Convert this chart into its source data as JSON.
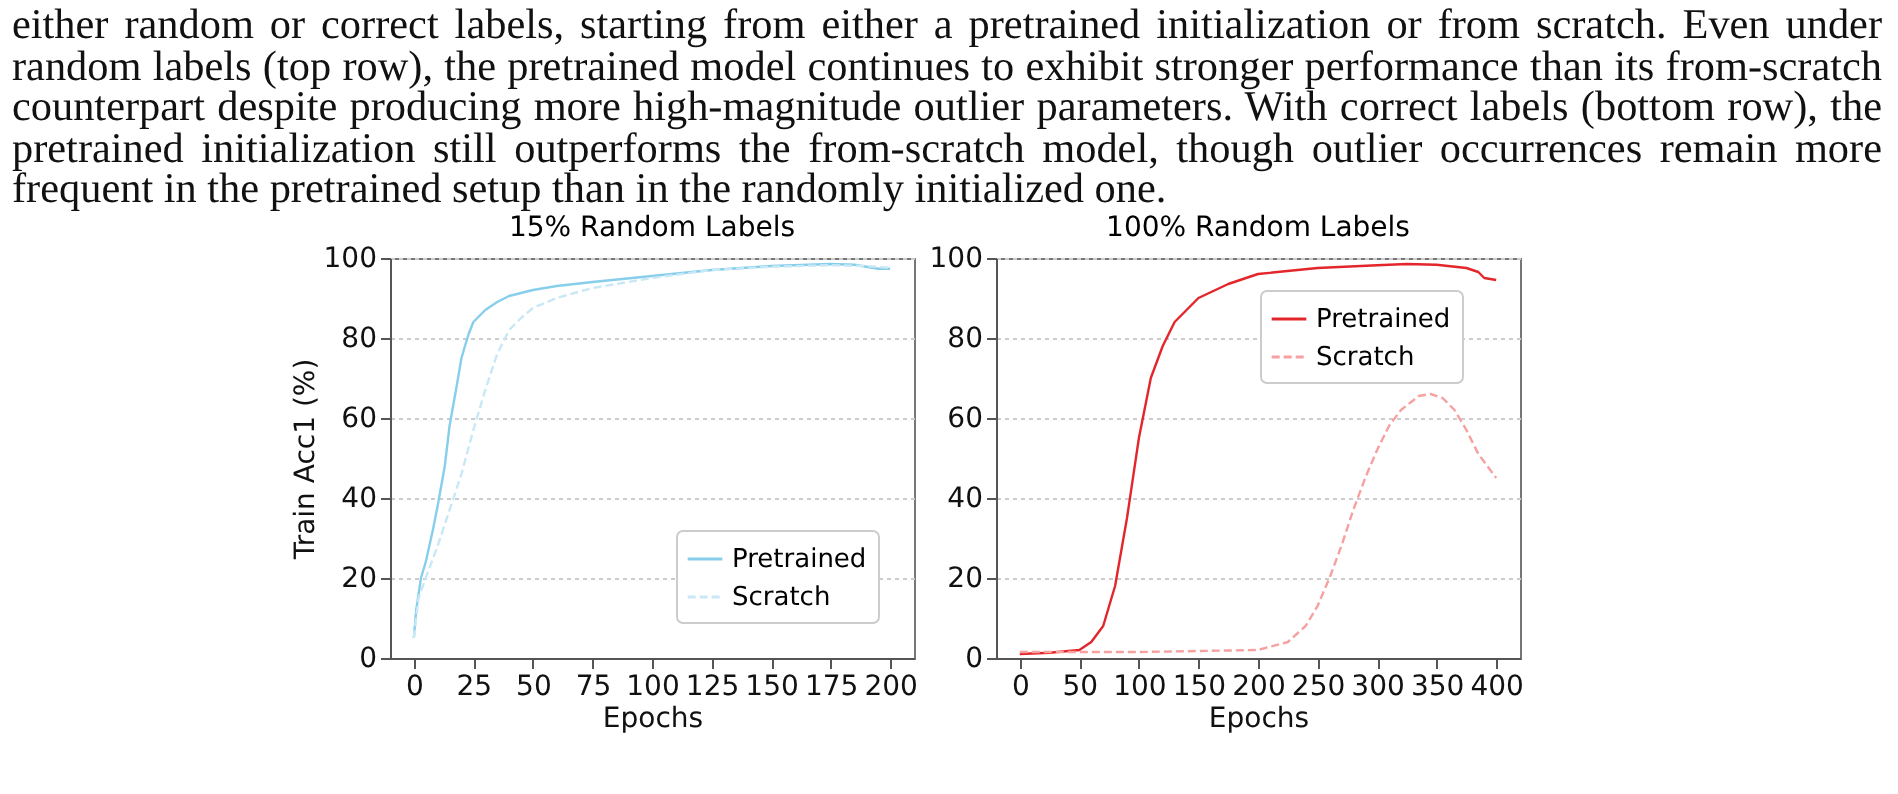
{
  "chart_data": [
    {
      "type": "line",
      "title": "15% Random Labels",
      "xlabel": "Epochs",
      "ylabel": "Train Acc1 (%)",
      "annotations": [
        "either random or correct labels, starting from either a pretrained initialization or from scratch. Even under random labels (top row), the pretrained model continues to exhibit stronger performance than its from-scratch counterpart despite producing more high-magnitude outlier parameters. With correct labels (bottom row), the pretrained initialization still outperforms the from-scratch model, though outlier occurrences remain more frequent in the pretrained setup than in the randomly initialized one."
      ],
      "xlim": [
        -10,
        210
      ],
      "xticks": [
        0,
        25,
        50,
        75,
        100,
        125,
        150,
        175,
        200
      ],
      "ylim": [
        0,
        100
      ],
      "yticks": [
        0,
        20,
        40,
        60,
        80,
        100
      ],
      "grid": "y",
      "legend": "bottom right",
      "series": [
        {
          "name": "Pretrained",
          "color": "#87ceeb",
          "line_style": "solid",
          "x": [
            0,
            1,
            3,
            5,
            8,
            10,
            13,
            15,
            18,
            20,
            23,
            25,
            30,
            35,
            40,
            50,
            60,
            75,
            100,
            125,
            150,
            175,
            185,
            195,
            200
          ],
          "values": [
            5,
            12,
            20,
            24,
            32,
            38,
            48,
            58,
            68,
            75,
            81,
            84,
            87,
            89,
            90.5,
            92,
            93,
            94,
            95.5,
            97,
            98,
            98.5,
            98.3,
            97.3,
            97.3
          ]
        },
        {
          "name": "Scratch",
          "color": "#c9e8f6",
          "line_style": "dashed",
          "x": [
            0,
            2,
            5,
            10,
            15,
            20,
            25,
            30,
            35,
            40,
            45,
            50,
            60,
            75,
            100,
            125,
            150,
            175,
            190,
            200
          ],
          "values": [
            5,
            15,
            20,
            28,
            37,
            46,
            57,
            67,
            76,
            82,
            85,
            87.5,
            90,
            92.5,
            95,
            97,
            97.8,
            98.2,
            98,
            97.5
          ]
        }
      ]
    },
    {
      "type": "line",
      "title": "100% Random Labels",
      "xlabel": "Epochs",
      "xlim": [
        -20,
        420
      ],
      "xticks": [
        0,
        50,
        100,
        150,
        200,
        250,
        300,
        350,
        400
      ],
      "ylim": [
        0,
        100
      ],
      "yticks": [
        0,
        20,
        40,
        60,
        80,
        100
      ],
      "grid": "y",
      "legend": "right",
      "series": [
        {
          "name": "Pretrained",
          "color": "#e3262b",
          "line_style": "solid",
          "x": [
            0,
            25,
            50,
            60,
            70,
            80,
            90,
            100,
            110,
            120,
            130,
            140,
            150,
            175,
            200,
            250,
            300,
            325,
            350,
            375,
            385,
            390,
            400
          ],
          "values": [
            1,
            1.3,
            2,
            4,
            8,
            18,
            35,
            55,
            70,
            78,
            84,
            87,
            90,
            93.5,
            96,
            97.5,
            98.2,
            98.5,
            98.3,
            97.5,
            96.5,
            95,
            94.5
          ]
        },
        {
          "name": "Scratch",
          "color": "#f6a0a0",
          "line_style": "dashed",
          "x": [
            0,
            100,
            200,
            225,
            240,
            250,
            260,
            270,
            280,
            290,
            300,
            310,
            320,
            335,
            345,
            355,
            365,
            375,
            385,
            400
          ],
          "values": [
            1.5,
            1.5,
            2,
            4,
            8,
            13,
            20,
            28,
            37,
            45,
            52,
            58,
            62,
            65.5,
            66,
            65,
            62,
            57,
            51,
            45
          ]
        }
      ]
    }
  ]
}
